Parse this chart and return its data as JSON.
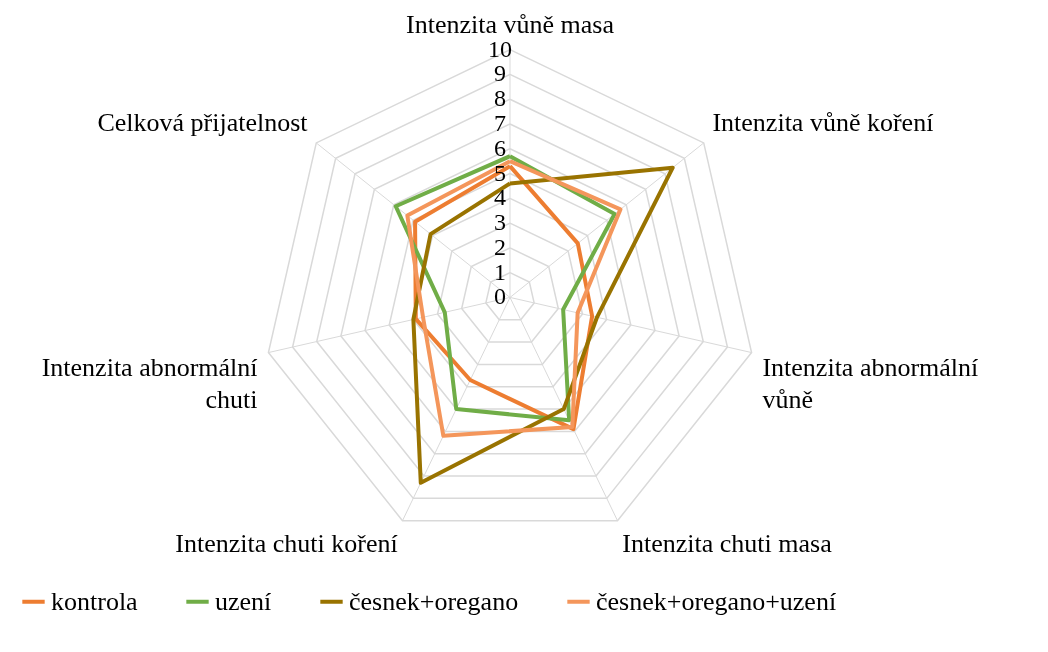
{
  "chart_data": {
    "type": "radar",
    "categories": [
      "Intenzita vůně masa",
      "Intenzita vůně koření",
      "Intenzita abnormální vůně",
      "Intenzita chuti masa",
      "Intenzita chuti koření",
      "Intenzita abnormální chuti",
      "Celková přijatelnost"
    ],
    "series": [
      {
        "name": "kontrola",
        "color": "#ed7d31",
        "values": [
          5.3,
          3.5,
          3.4,
          5.9,
          3.7,
          3.9,
          4.9
        ]
      },
      {
        "name": "uzení",
        "color": "#70ad47",
        "values": [
          5.7,
          5.4,
          2.2,
          5.5,
          5.0,
          2.7,
          5.9
        ]
      },
      {
        "name": "česnek+oregano",
        "color": "#997300",
        "values": [
          4.6,
          8.4,
          3.6,
          5.0,
          8.3,
          4.0,
          4.1
        ]
      },
      {
        "name": "česnek+oregano+uzení",
        "color": "#f4965b",
        "values": [
          5.5,
          5.7,
          2.8,
          5.8,
          6.2,
          3.6,
          5.3
        ]
      }
    ],
    "ylim": [
      0,
      10
    ],
    "yticks": [
      0,
      1,
      2,
      3,
      4,
      5,
      6,
      7,
      8,
      9,
      10
    ],
    "grid": true,
    "legend": "bottom"
  }
}
